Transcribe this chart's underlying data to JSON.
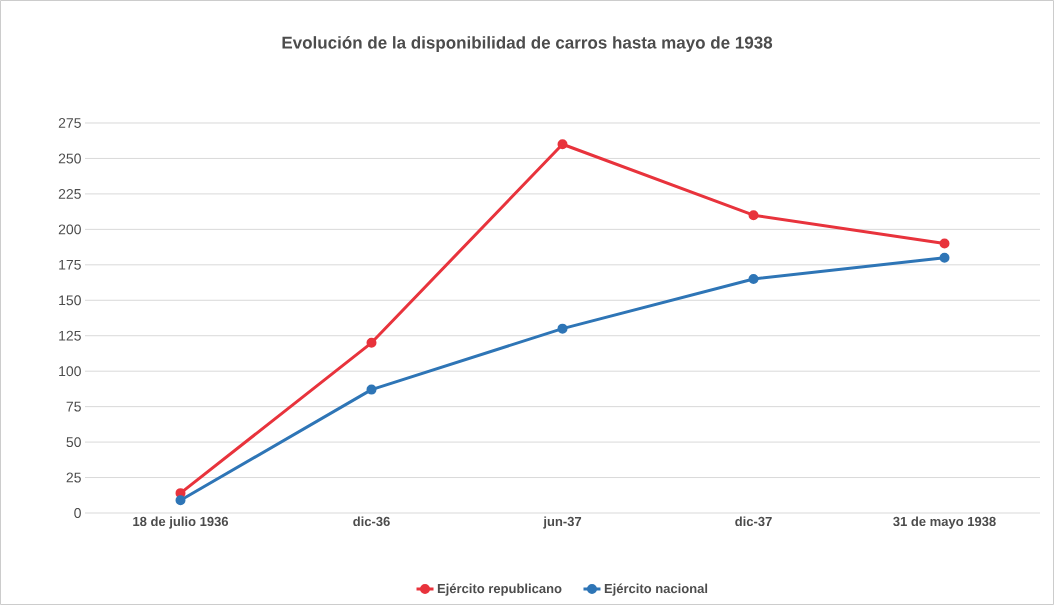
{
  "chart_data": {
    "type": "line",
    "title": "Evolución de la disponibilidad de carros hasta mayo de 1938",
    "categories": [
      "18 de julio 1936",
      "dic-36",
      "jun-37",
      "dic-37",
      "31 de mayo  1938"
    ],
    "series": [
      {
        "name": "Ejército republicano",
        "color": "#e8333c",
        "values": [
          14,
          120,
          260,
          210,
          190
        ]
      },
      {
        "name": "Ejército nacional",
        "color": "#2e75b6",
        "values": [
          9,
          87,
          130,
          165,
          180
        ]
      }
    ],
    "ylim": [
      0,
      275
    ],
    "yticks": [
      0,
      25,
      50,
      75,
      100,
      125,
      150,
      175,
      200,
      225,
      250,
      275
    ],
    "grid": "y",
    "legend": "bottom",
    "marker": "circle",
    "line_style": "solid"
  }
}
